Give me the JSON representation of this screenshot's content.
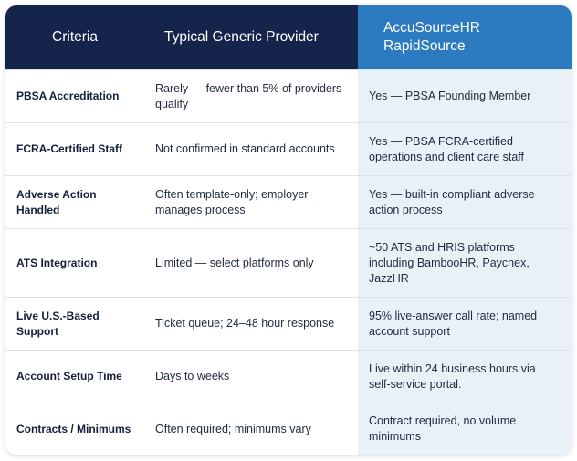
{
  "header": {
    "criteria": "Criteria",
    "generic": "Typical Generic Provider",
    "accu_line1": "AccuSourceHR",
    "accu_line2": "RapidSource"
  },
  "rows": [
    {
      "criteria": "PBSA Accreditation",
      "generic": "Rarely — fewer than 5% of providers qualify",
      "accu": "Yes — PBSA Founding Member"
    },
    {
      "criteria": "FCRA-Certified Staff",
      "generic": "Not confirmed in standard accounts",
      "accu": "Yes — PBSA FCRA-certified operations and client care staff"
    },
    {
      "criteria": "Adverse Action Handled",
      "generic": "Often template-only; employer manages process",
      "accu": "Yes — built-in compliant adverse action process"
    },
    {
      "criteria": "ATS Integration",
      "generic": "Limited — select platforms only",
      "accu": "~50 ATS and HRIS platforms including BambooHR, Paychex, JazzHR"
    },
    {
      "criteria": "Live U.S.-Based Support",
      "generic": "Ticket queue; 24–48 hour response",
      "accu": "95% live-answer call rate; named account support"
    },
    {
      "criteria": "Account Setup Time",
      "generic": "Days to weeks",
      "accu": "Live within 24 business hours via self-service portal."
    },
    {
      "criteria": "Contracts / Minimums",
      "generic": "Often required; minimums vary",
      "accu": "Contract required, no volume minimums"
    }
  ],
  "colors": {
    "header_dark": "#14244a",
    "header_accent": "#2c7bc0",
    "accent_column_bg": "#e8f1f8"
  }
}
